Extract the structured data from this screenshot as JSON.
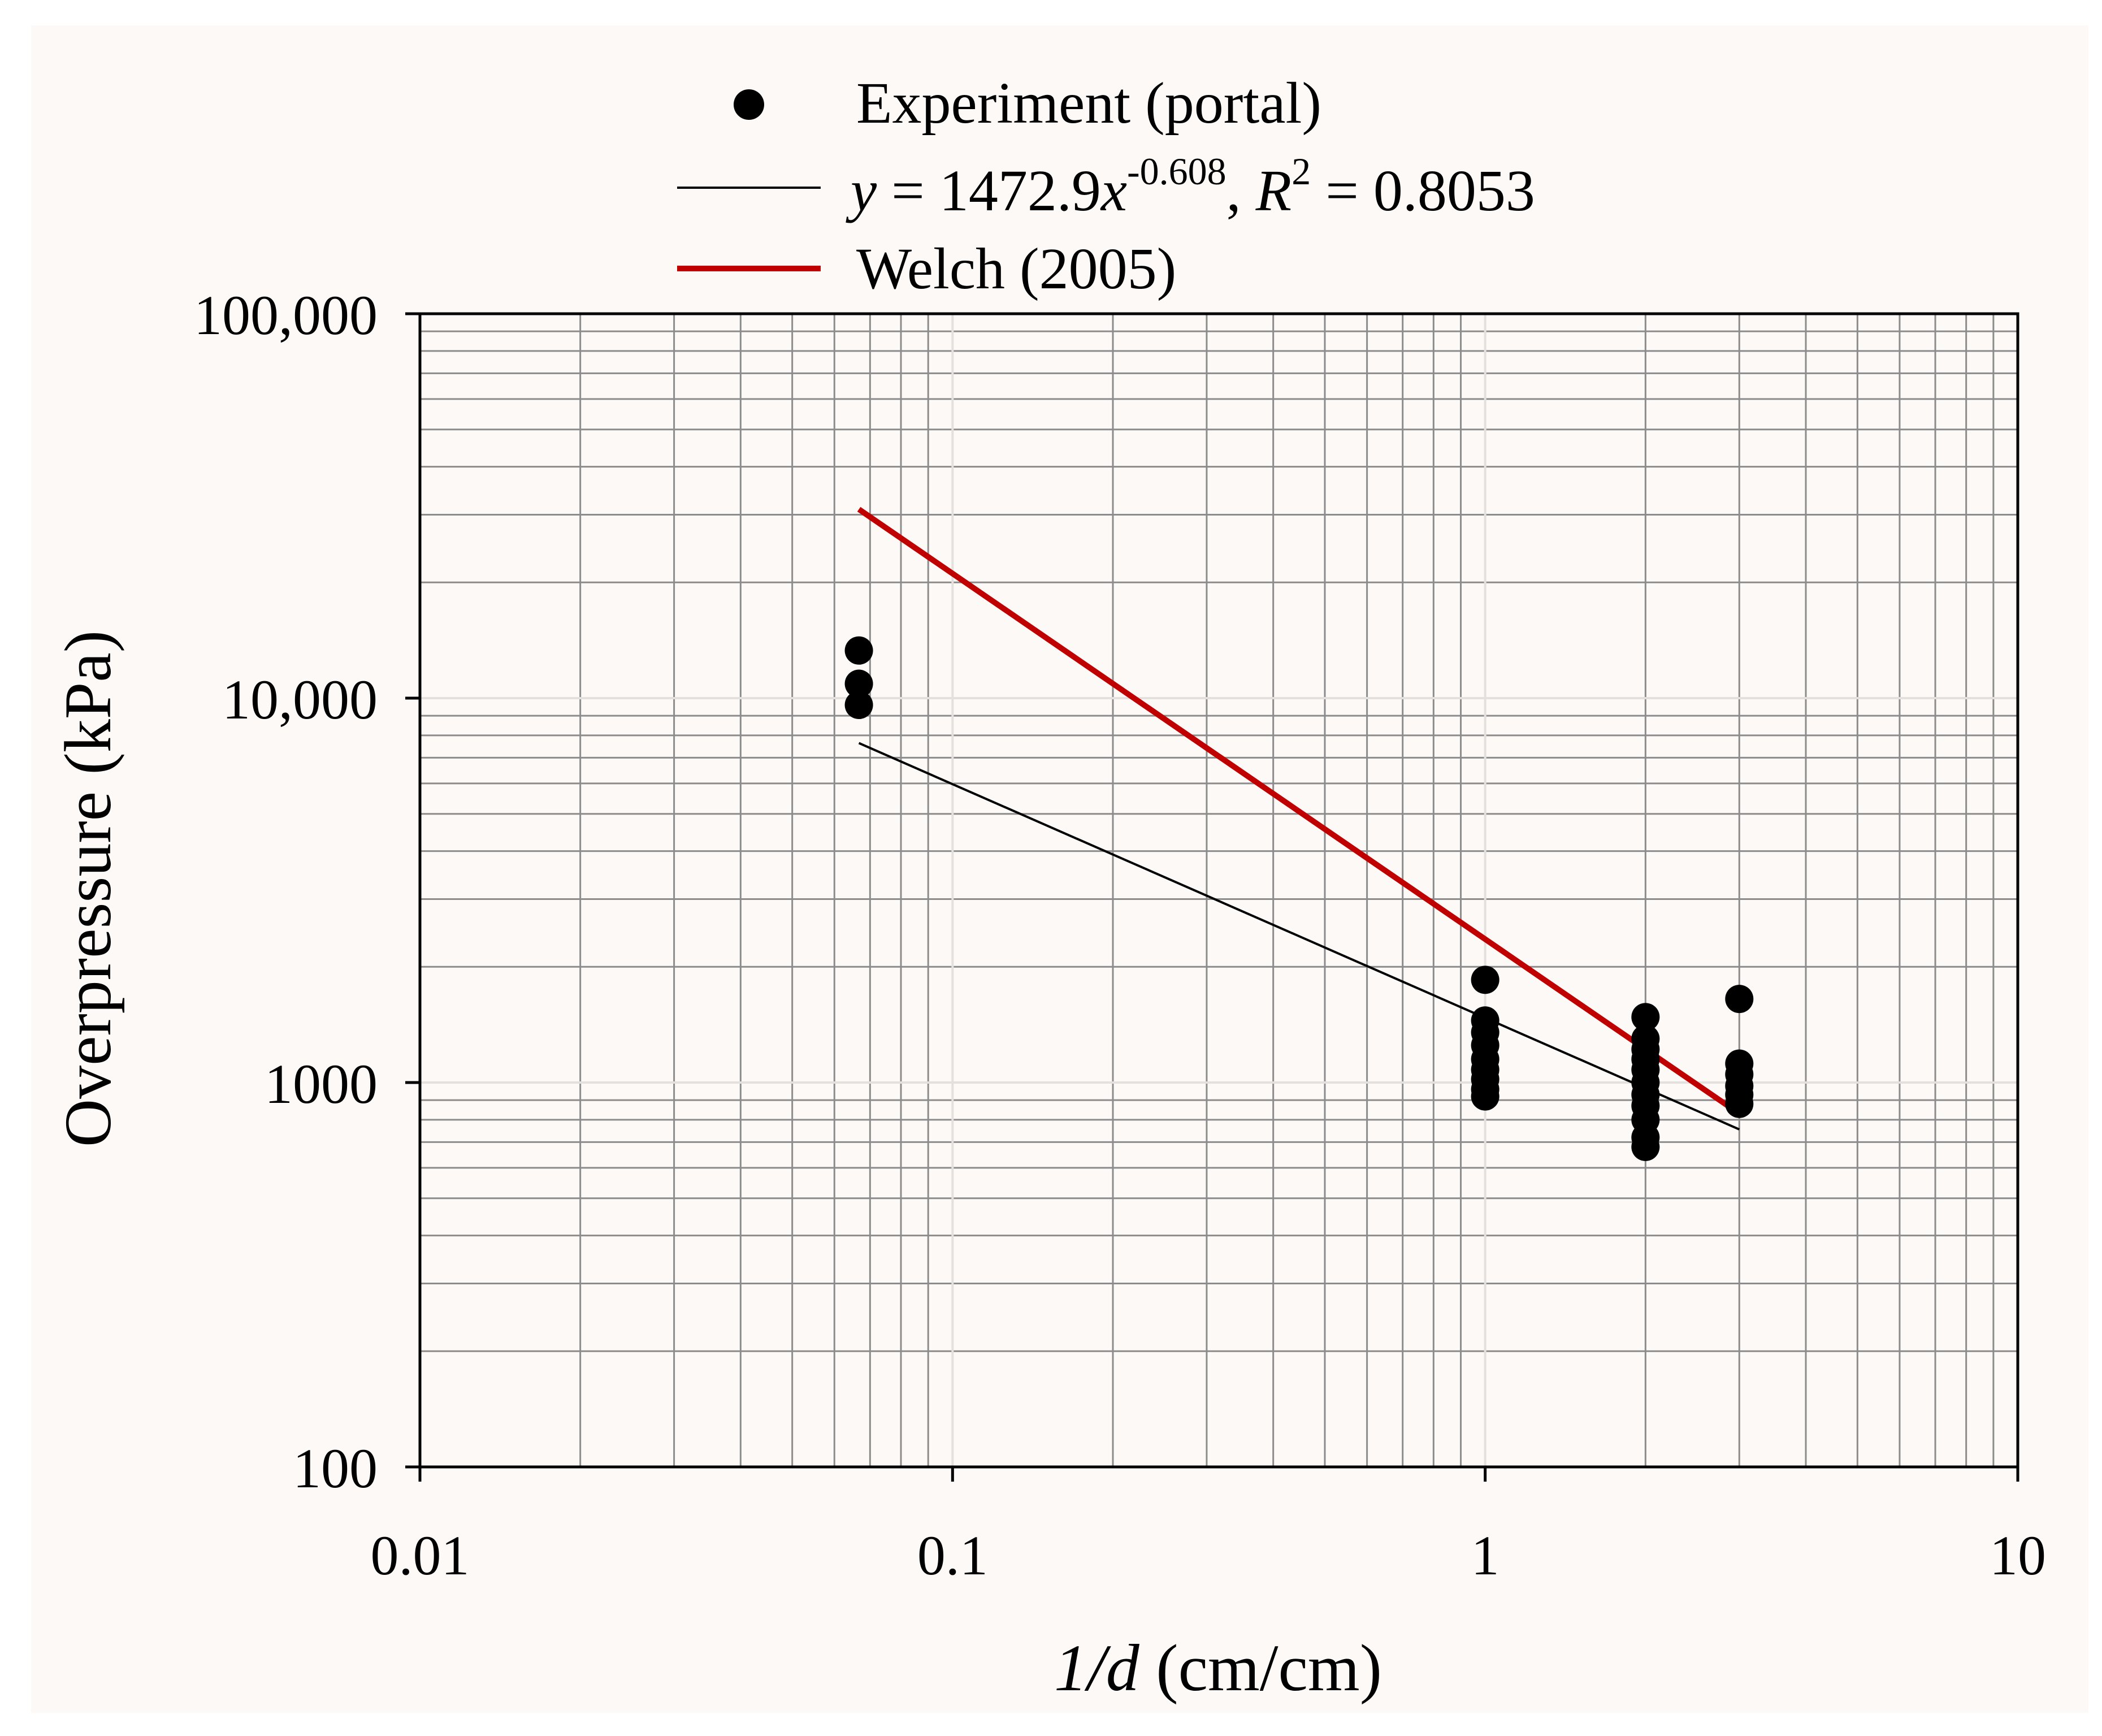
{
  "chart_data": {
    "type": "scatter",
    "xscale": "log",
    "yscale": "log",
    "xlim": [
      0.01,
      10
    ],
    "ylim": [
      100,
      100000
    ],
    "xlabel": {
      "italic": "1/d",
      "rest": " (cm/cm)"
    },
    "ylabel": "Overpressure (kPa)",
    "xticks": [
      {
        "value": 0.01,
        "label": "0.01"
      },
      {
        "value": 0.1,
        "label": "0.1"
      },
      {
        "value": 1,
        "label": "1"
      },
      {
        "value": 10,
        "label": "10"
      }
    ],
    "yticks": [
      {
        "value": 100,
        "label": "100"
      },
      {
        "value": 1000,
        "label": "1000"
      },
      {
        "value": 10000,
        "label": "10,000"
      },
      {
        "value": 100000,
        "label": "100,000"
      }
    ],
    "grid": true,
    "legend": {
      "position": "top",
      "experiment_label": "Experiment (portal)",
      "fit_label": {
        "y": "y",
        "eq": " = 1472.9",
        "x": "x",
        "exp": "-0.608",
        "comma": ", ",
        "r": "R",
        "r_exp": "2",
        "r_val": " = 0.8053"
      },
      "welch_label": "Welch (2005)"
    },
    "series": [
      {
        "name": "Experiment (portal)",
        "kind": "points",
        "color": "#000000",
        "points": [
          [
            0.0667,
            13300
          ],
          [
            0.0667,
            10900
          ],
          [
            0.0667,
            9600
          ],
          [
            1,
            1850
          ],
          [
            1,
            1450
          ],
          [
            1,
            1350
          ],
          [
            1,
            1250
          ],
          [
            1,
            1150
          ],
          [
            1,
            1080
          ],
          [
            1,
            1020
          ],
          [
            1,
            960
          ],
          [
            1,
            920
          ],
          [
            2,
            1480
          ],
          [
            2,
            1300
          ],
          [
            2,
            1220
          ],
          [
            2,
            1150
          ],
          [
            2,
            1080
          ],
          [
            2,
            1000
          ],
          [
            2,
            930
          ],
          [
            2,
            870
          ],
          [
            2,
            800
          ],
          [
            2,
            720
          ],
          [
            2,
            680
          ],
          [
            3,
            1650
          ],
          [
            3,
            1120
          ],
          [
            3,
            1050
          ],
          [
            3,
            980
          ],
          [
            3,
            930
          ],
          [
            3,
            880
          ]
        ]
      },
      {
        "name": "Power fit",
        "kind": "line",
        "color": "#000000",
        "a": 1472.9,
        "b": -0.608,
        "x_range": [
          0.0667,
          3
        ]
      },
      {
        "name": "Welch (2005)",
        "kind": "line",
        "color": "#c00000",
        "points": [
          [
            0.0667,
            31000
          ],
          [
            3,
            830
          ]
        ]
      }
    ]
  }
}
